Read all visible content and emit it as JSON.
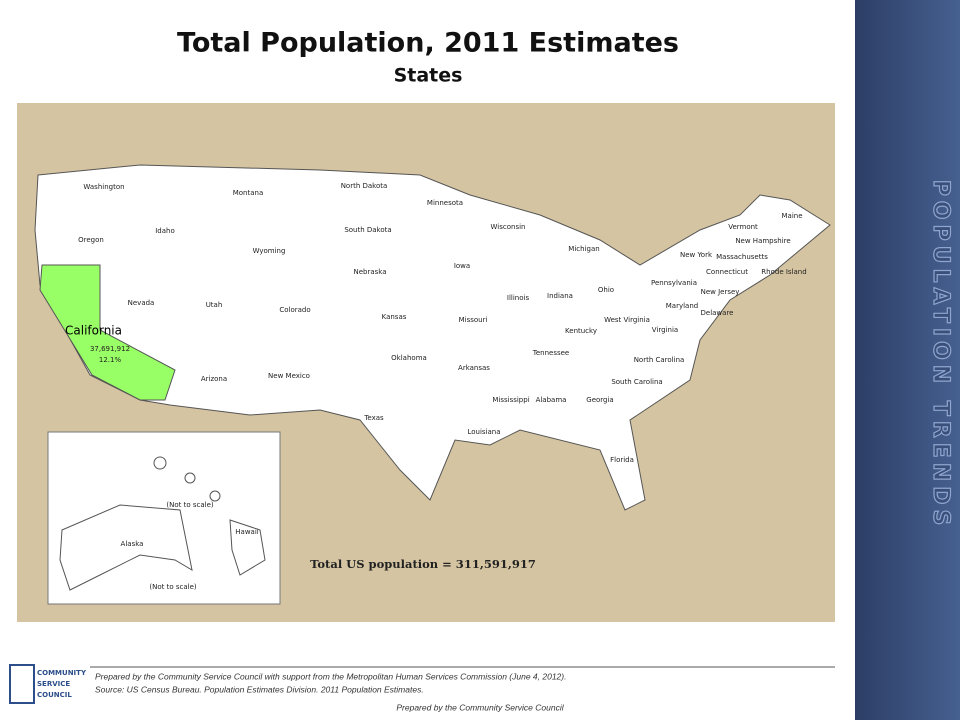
{
  "header": {
    "title": "Total Population, 2011 Estimates",
    "subtitle": "States"
  },
  "map": {
    "states": [
      "Washington",
      "Montana",
      "North Dakota",
      "Minnesota",
      "Oregon",
      "Idaho",
      "Wyoming",
      "South Dakota",
      "Wisconsin",
      "Michigan",
      "Maine",
      "Vermont",
      "New Hampshire",
      "Massachusetts",
      "New York",
      "Connecticut",
      "Rhode Island",
      "Nebraska",
      "Iowa",
      "Nevada",
      "Utah",
      "Colorado",
      "Illinois",
      "Indiana",
      "Ohio",
      "Pennsylvania",
      "New Jersey",
      "Maryland",
      "Delaware",
      "West Virginia",
      "Kansas",
      "Missouri",
      "Kentucky",
      "Virginia",
      "Tennessee",
      "North Carolina",
      "Oklahoma",
      "Arkansas",
      "Arizona",
      "New Mexico",
      "South Carolina",
      "Mississippi",
      "Alabama",
      "Georgia",
      "Texas",
      "Louisiana",
      "Florida",
      "Alaska",
      "Hawaii"
    ],
    "highlight": {
      "name": "California",
      "population": "37,691,912",
      "share": "12.1%"
    },
    "inset_notes": [
      "(Not to scale)",
      "(Not to scale)"
    ],
    "total": "Total US population = 311,591,917"
  },
  "footer": {
    "lines": [
      "Prepared by the Community Service Council with support from the Metropolitan Human Services Commission (June 4, 2012).",
      "Source:  US Census Bureau. Population Estimates Division. 2011 Population Estimates."
    ],
    "credit": "Prepared by the Community Service Council",
    "logo": [
      "COMMUNITY",
      "SERVICE",
      "COUNCIL"
    ]
  },
  "sidebar": {
    "label": "POPULATION TRENDS"
  }
}
